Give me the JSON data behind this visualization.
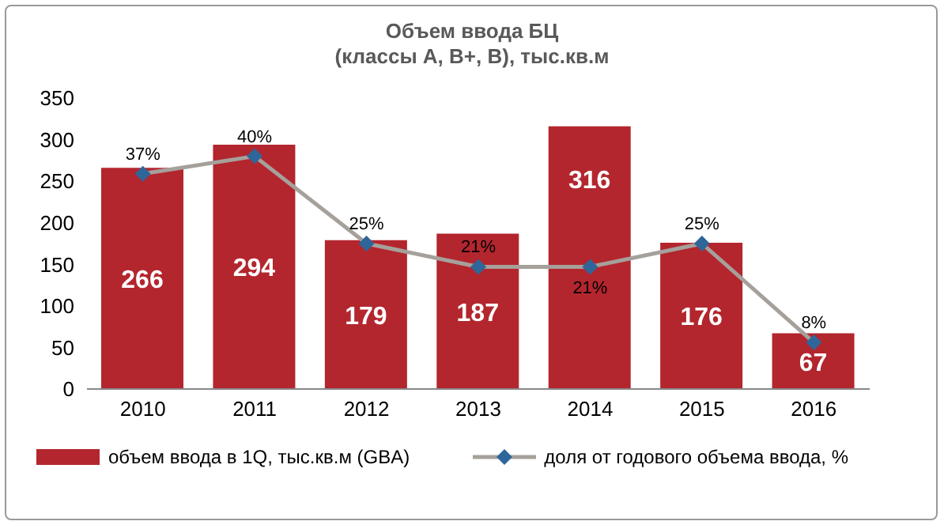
{
  "chart_data": {
    "type": "bar",
    "title": "Объем ввода БЦ\n(классы А, В+, В), тыс.кв.м",
    "categories": [
      "2010",
      "2011",
      "2012",
      "2013",
      "2014",
      "2015",
      "2016"
    ],
    "series": [
      {
        "name": "объем ввода в 1Q, тыс.кв.м (GBA)",
        "color": "#b3262e",
        "values": [
          266,
          294,
          179,
          187,
          316,
          176,
          67
        ],
        "data_labels": true
      },
      {
        "name": "доля от годового объема ввода, %",
        "type": "line",
        "axis": "y2",
        "color": "#a6a09b",
        "marker": "diamond",
        "values": [
          37,
          40,
          25,
          21,
          21,
          25,
          8
        ],
        "value_labels": [
          "37%",
          "40%",
          "25%",
          "21%",
          "21%",
          "25%",
          "8%"
        ]
      }
    ],
    "ylim": [
      0,
      350
    ],
    "yticks": [
      0,
      50,
      100,
      150,
      200,
      250,
      300,
      350
    ],
    "grid": false,
    "legend": "bottom"
  }
}
